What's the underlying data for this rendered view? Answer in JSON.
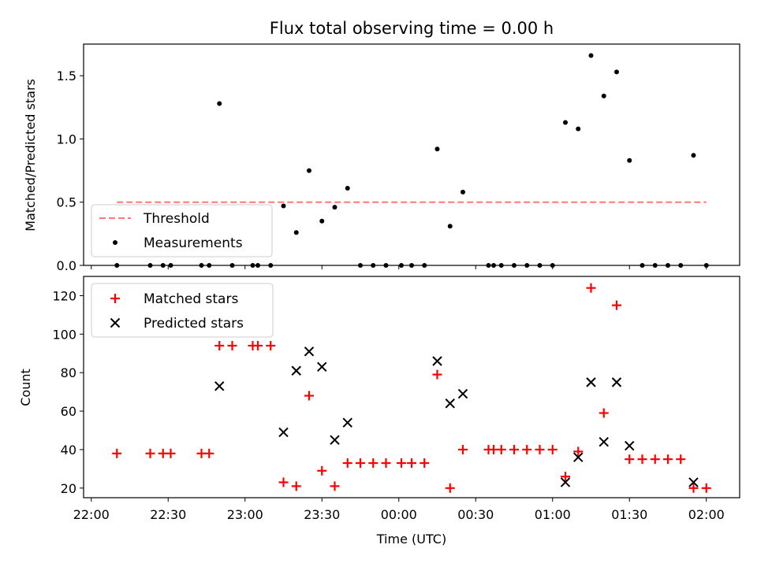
{
  "chart_data": [
    {
      "type": "scatter",
      "title": "Flux total observing time = 0.00 h",
      "xlabel": "",
      "ylabel": "Matched/Predicted stars",
      "ylim": [
        0,
        1.75
      ],
      "yticks": [
        "0.0",
        "0.5",
        "1.0",
        "1.5"
      ],
      "xlim": [
        "21:57",
        "02:13"
      ],
      "x_ticks": [
        "22:00",
        "22:30",
        "23:00",
        "23:30",
        "00:00",
        "00:30",
        "01:00",
        "01:30",
        "02:00"
      ],
      "legend": {
        "position": "lower-left",
        "entries": [
          "Threshold",
          "Measurements"
        ]
      },
      "threshold": {
        "name": "Threshold",
        "value": 0.5,
        "x_range": [
          "22:10",
          "02:00"
        ],
        "color": "#ff7777",
        "style": "dashed"
      },
      "series": [
        {
          "name": "Measurements",
          "color": "#000000",
          "marker": "dot",
          "points": [
            {
              "x": "22:10",
              "y": 0
            },
            {
              "x": "22:23",
              "y": 0
            },
            {
              "x": "22:28",
              "y": 0
            },
            {
              "x": "22:31",
              "y": 0
            },
            {
              "x": "22:43",
              "y": 0
            },
            {
              "x": "22:46",
              "y": 0
            },
            {
              "x": "22:50",
              "y": 1.28
            },
            {
              "x": "22:55",
              "y": 0
            },
            {
              "x": "23:03",
              "y": 0
            },
            {
              "x": "23:05",
              "y": 0
            },
            {
              "x": "23:10",
              "y": 0
            },
            {
              "x": "23:15",
              "y": 0.47
            },
            {
              "x": "23:20",
              "y": 0.26
            },
            {
              "x": "23:25",
              "y": 0.75
            },
            {
              "x": "23:30",
              "y": 0.35
            },
            {
              "x": "23:35",
              "y": 0.46
            },
            {
              "x": "23:40",
              "y": 0.61
            },
            {
              "x": "23:45",
              "y": 0
            },
            {
              "x": "23:50",
              "y": 0
            },
            {
              "x": "23:55",
              "y": 0
            },
            {
              "x": "00:01",
              "y": 0
            },
            {
              "x": "00:05",
              "y": 0
            },
            {
              "x": "00:10",
              "y": 0
            },
            {
              "x": "00:15",
              "y": 0.92
            },
            {
              "x": "00:20",
              "y": 0.31
            },
            {
              "x": "00:25",
              "y": 0.58
            },
            {
              "x": "00:35",
              "y": 0
            },
            {
              "x": "00:37",
              "y": 0
            },
            {
              "x": "00:40",
              "y": 0
            },
            {
              "x": "00:45",
              "y": 0
            },
            {
              "x": "00:50",
              "y": 0
            },
            {
              "x": "00:55",
              "y": 0
            },
            {
              "x": "01:00",
              "y": 0
            },
            {
              "x": "01:05",
              "y": 1.13
            },
            {
              "x": "01:10",
              "y": 1.08
            },
            {
              "x": "01:15",
              "y": 1.66
            },
            {
              "x": "01:20",
              "y": 1.34
            },
            {
              "x": "01:25",
              "y": 1.53
            },
            {
              "x": "01:30",
              "y": 0.83
            },
            {
              "x": "01:35",
              "y": 0
            },
            {
              "x": "01:40",
              "y": 0
            },
            {
              "x": "01:45",
              "y": 0
            },
            {
              "x": "01:50",
              "y": 0
            },
            {
              "x": "01:55",
              "y": 0.87
            },
            {
              "x": "02:00",
              "y": 0
            }
          ]
        }
      ]
    },
    {
      "type": "scatter",
      "title": "",
      "xlabel": "Time (UTC)",
      "ylabel": "Count",
      "ylim": [
        15,
        130
      ],
      "yticks": [
        "20",
        "40",
        "60",
        "80",
        "100",
        "120"
      ],
      "xlim": [
        "21:57",
        "02:13"
      ],
      "x_ticks": [
        "22:00",
        "22:30",
        "23:00",
        "23:30",
        "00:00",
        "00:30",
        "01:00",
        "01:30",
        "02:00"
      ],
      "legend": {
        "position": "top-left",
        "entries": [
          "Matched stars",
          "Predicted stars"
        ]
      },
      "series": [
        {
          "name": "Matched stars",
          "color": "#ff0000",
          "marker": "plus",
          "points": [
            {
              "x": "22:10",
              "y": 38
            },
            {
              "x": "22:23",
              "y": 38
            },
            {
              "x": "22:28",
              "y": 38
            },
            {
              "x": "22:31",
              "y": 38
            },
            {
              "x": "22:43",
              "y": 38
            },
            {
              "x": "22:46",
              "y": 38
            },
            {
              "x": "22:50",
              "y": 94
            },
            {
              "x": "22:55",
              "y": 94
            },
            {
              "x": "23:03",
              "y": 94
            },
            {
              "x": "23:05",
              "y": 94
            },
            {
              "x": "23:10",
              "y": 94
            },
            {
              "x": "23:15",
              "y": 23
            },
            {
              "x": "23:20",
              "y": 21
            },
            {
              "x": "23:25",
              "y": 68
            },
            {
              "x": "23:30",
              "y": 29
            },
            {
              "x": "23:35",
              "y": 21
            },
            {
              "x": "23:40",
              "y": 33
            },
            {
              "x": "23:45",
              "y": 33
            },
            {
              "x": "23:50",
              "y": 33
            },
            {
              "x": "23:55",
              "y": 33
            },
            {
              "x": "00:01",
              "y": 33
            },
            {
              "x": "00:05",
              "y": 33
            },
            {
              "x": "00:10",
              "y": 33
            },
            {
              "x": "00:15",
              "y": 79
            },
            {
              "x": "00:20",
              "y": 20
            },
            {
              "x": "00:25",
              "y": 40
            },
            {
              "x": "00:35",
              "y": 40
            },
            {
              "x": "00:37",
              "y": 40
            },
            {
              "x": "00:40",
              "y": 40
            },
            {
              "x": "00:45",
              "y": 40
            },
            {
              "x": "00:50",
              "y": 40
            },
            {
              "x": "00:55",
              "y": 40
            },
            {
              "x": "01:00",
              "y": 40
            },
            {
              "x": "01:05",
              "y": 26
            },
            {
              "x": "01:10",
              "y": 39
            },
            {
              "x": "01:15",
              "y": 124
            },
            {
              "x": "01:20",
              "y": 59
            },
            {
              "x": "01:25",
              "y": 115
            },
            {
              "x": "01:30",
              "y": 35
            },
            {
              "x": "01:35",
              "y": 35
            },
            {
              "x": "01:40",
              "y": 35
            },
            {
              "x": "01:45",
              "y": 35
            },
            {
              "x": "01:50",
              "y": 35
            },
            {
              "x": "01:55",
              "y": 20
            },
            {
              "x": "02:00",
              "y": 20
            }
          ]
        },
        {
          "name": "Predicted stars",
          "color": "#000000",
          "marker": "x",
          "points": [
            {
              "x": "22:50",
              "y": 73
            },
            {
              "x": "23:15",
              "y": 49
            },
            {
              "x": "23:20",
              "y": 81
            },
            {
              "x": "23:25",
              "y": 91
            },
            {
              "x": "23:30",
              "y": 83
            },
            {
              "x": "23:35",
              "y": 45
            },
            {
              "x": "23:40",
              "y": 54
            },
            {
              "x": "00:15",
              "y": 86
            },
            {
              "x": "00:20",
              "y": 64
            },
            {
              "x": "00:25",
              "y": 69
            },
            {
              "x": "01:05",
              "y": 23
            },
            {
              "x": "01:10",
              "y": 36
            },
            {
              "x": "01:15",
              "y": 75
            },
            {
              "x": "01:20",
              "y": 44
            },
            {
              "x": "01:25",
              "y": 75
            },
            {
              "x": "01:30",
              "y": 42
            },
            {
              "x": "01:55",
              "y": 23
            }
          ]
        }
      ]
    }
  ]
}
